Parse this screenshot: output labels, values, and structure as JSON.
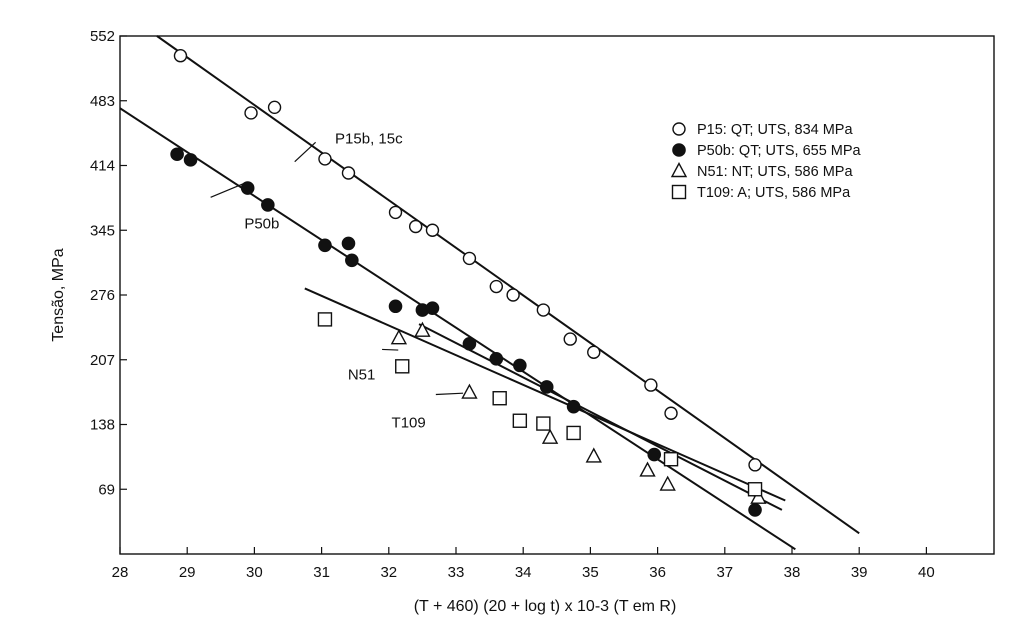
{
  "chart_data": {
    "type": "scatter",
    "title": "",
    "xlabel": "(T + 460) (20 + log t) x 10-3 (T em R)",
    "ylabel": "Tensão, MPa",
    "xlim": [
      28,
      41
    ],
    "ylim": [
      0,
      552
    ],
    "xticks": [
      "28",
      "29",
      "30",
      "31",
      "32",
      "33",
      "34",
      "35",
      "36",
      "37",
      "38",
      "39",
      "40"
    ],
    "yticks": [
      "69",
      "138",
      "207",
      "276",
      "345",
      "414",
      "483",
      "552"
    ],
    "legend_position": "top-right",
    "grid": false,
    "legend": [
      {
        "label": "P15: QT; UTS, 834 MPa",
        "marker": "open-circle"
      },
      {
        "label": "P50b: QT; UTS, 655 MPa",
        "marker": "filled-circle"
      },
      {
        "label": "N51: NT; UTS, 586 MPa",
        "marker": "open-triangle"
      },
      {
        "label": "T109: A;  UTS, 586 MPa",
        "marker": "open-square"
      }
    ],
    "series": [
      {
        "name": "P15: QT; UTS, 834 MPa",
        "marker": "open-circle",
        "points": [
          {
            "x": 28.9,
            "y": 531
          },
          {
            "x": 29.95,
            "y": 470
          },
          {
            "x": 30.3,
            "y": 476
          },
          {
            "x": 31.05,
            "y": 421
          },
          {
            "x": 31.4,
            "y": 406
          },
          {
            "x": 32.1,
            "y": 364
          },
          {
            "x": 32.4,
            "y": 349
          },
          {
            "x": 32.65,
            "y": 345
          },
          {
            "x": 33.2,
            "y": 315
          },
          {
            "x": 33.6,
            "y": 285
          },
          {
            "x": 33.85,
            "y": 276
          },
          {
            "x": 34.3,
            "y": 260
          },
          {
            "x": 34.7,
            "y": 229
          },
          {
            "x": 35.05,
            "y": 215
          },
          {
            "x": 35.9,
            "y": 180
          },
          {
            "x": 36.2,
            "y": 150
          },
          {
            "x": 37.45,
            "y": 95
          }
        ]
      },
      {
        "name": "P50b: QT; UTS, 655 MPa",
        "marker": "filled-circle",
        "points": [
          {
            "x": 28.85,
            "y": 426
          },
          {
            "x": 29.05,
            "y": 420
          },
          {
            "x": 29.9,
            "y": 390
          },
          {
            "x": 30.2,
            "y": 372
          },
          {
            "x": 31.05,
            "y": 329
          },
          {
            "x": 31.4,
            "y": 331
          },
          {
            "x": 31.45,
            "y": 313
          },
          {
            "x": 32.1,
            "y": 264
          },
          {
            "x": 32.5,
            "y": 260
          },
          {
            "x": 32.65,
            "y": 262
          },
          {
            "x": 33.2,
            "y": 224
          },
          {
            "x": 33.6,
            "y": 208
          },
          {
            "x": 33.95,
            "y": 201
          },
          {
            "x": 34.35,
            "y": 178
          },
          {
            "x": 34.75,
            "y": 157
          },
          {
            "x": 35.95,
            "y": 106
          },
          {
            "x": 37.45,
            "y": 47
          }
        ]
      },
      {
        "name": "N51: NT; UTS, 586 MPa",
        "marker": "open-triangle",
        "points": [
          {
            "x": 32.15,
            "y": 230
          },
          {
            "x": 32.5,
            "y": 238
          },
          {
            "x": 33.2,
            "y": 172
          },
          {
            "x": 34.4,
            "y": 124
          },
          {
            "x": 35.05,
            "y": 104
          },
          {
            "x": 35.85,
            "y": 89
          },
          {
            "x": 36.15,
            "y": 74
          },
          {
            "x": 37.5,
            "y": 60
          }
        ]
      },
      {
        "name": "T109: A;  UTS, 586 MPa",
        "marker": "open-square",
        "points": [
          {
            "x": 31.05,
            "y": 250
          },
          {
            "x": 32.2,
            "y": 200
          },
          {
            "x": 33.65,
            "y": 166
          },
          {
            "x": 33.95,
            "y": 142
          },
          {
            "x": 34.3,
            "y": 139
          },
          {
            "x": 34.75,
            "y": 129
          },
          {
            "x": 36.2,
            "y": 101
          },
          {
            "x": 37.45,
            "y": 69
          }
        ]
      }
    ],
    "fit_lines": [
      {
        "series": "P15: QT; UTS, 834 MPa",
        "x": [
          28.55,
          39.0
        ],
        "y": [
          552,
          22
        ]
      },
      {
        "series": "P50b: QT; UTS, 655 MPa",
        "x": [
          28.0,
          38.05
        ],
        "y": [
          475,
          5
        ]
      },
      {
        "series": "N51: NT; UTS, 586 MPa",
        "x": [
          32.45,
          37.85
        ],
        "y": [
          245,
          47
        ]
      },
      {
        "series": "T109: A;  UTS, 586 MPa",
        "x": [
          30.75,
          37.9
        ],
        "y": [
          283,
          57
        ]
      }
    ],
    "annotations": [
      {
        "text": "P15b, 15c",
        "at": [
          31.0,
          443
        ]
      },
      {
        "text": "P50b",
        "at": [
          30.25,
          378
        ]
      },
      {
        "text": "N51",
        "at": [
          32.25,
          225
        ]
      },
      {
        "text": "T109",
        "at": [
          32.9,
          180
        ]
      }
    ]
  }
}
